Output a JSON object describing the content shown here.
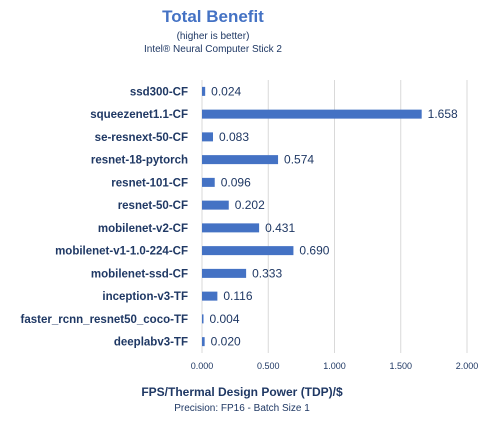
{
  "colors": {
    "bar": "#4472C4",
    "title": "#4472C4",
    "axis_title": "#1F3864",
    "text": "#1F3864",
    "grid": "#D9D9D9"
  },
  "chart_data": {
    "type": "bar",
    "orientation": "horizontal",
    "title": "Total Benefit",
    "subtitle": "(higher is better)",
    "device": "Intel® Neural Computer Stick 2",
    "xlabel": "FPS/Thermal Design Power (TDP)/$",
    "note": "Precision: FP16 - Batch Size 1",
    "xlim": [
      0,
      2
    ],
    "xticks": [
      "0.000",
      "0.500",
      "1.000",
      "1.500",
      "2.000"
    ],
    "xtick_values": [
      0,
      0.5,
      1,
      1.5,
      2
    ],
    "grid": true,
    "categories": [
      "ssd300-CF",
      "squeezenet1.1-CF",
      "se-resnext-50-CF",
      "resnet-18-pytorch",
      "resnet-101-CF",
      "resnet-50-CF",
      "mobilenet-v2-CF",
      "mobilenet-v1-1.0-224-CF",
      "mobilenet-ssd-CF",
      "inception-v3-TF",
      "faster_rcnn_resnet50_coco-TF",
      "deeplabv3-TF"
    ],
    "values": [
      0.024,
      1.658,
      0.083,
      0.574,
      0.096,
      0.202,
      0.431,
      0.69,
      0.333,
      0.116,
      0.004,
      0.02
    ],
    "value_labels": [
      "0.024",
      "1.658",
      "0.083",
      "0.574",
      "0.096",
      "0.202",
      "0.431",
      "0.690",
      "0.333",
      "0.116",
      "0.004",
      "0.020"
    ]
  }
}
